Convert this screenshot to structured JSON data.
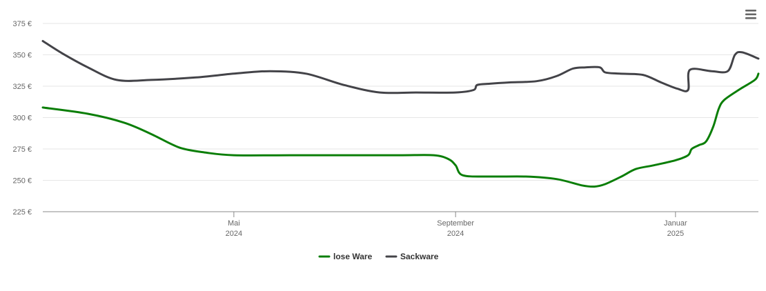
{
  "chart_data": {
    "type": "line",
    "title": "",
    "xlabel": "",
    "ylabel": "",
    "x_range": [
      "2024-01-16",
      "2025-02-16"
    ],
    "ylim": [
      225,
      375
    ],
    "y_ticks": [
      {
        "value": 225,
        "label": "225 €"
      },
      {
        "value": 250,
        "label": "250 €"
      },
      {
        "value": 275,
        "label": "275 €"
      },
      {
        "value": 300,
        "label": "300 €"
      },
      {
        "value": 325,
        "label": "325 €"
      },
      {
        "value": 350,
        "label": "350 €"
      },
      {
        "value": 375,
        "label": "375 €"
      }
    ],
    "x_ticks": [
      {
        "date": "2024-05-01",
        "month": "Mai",
        "year": "2024"
      },
      {
        "date": "2024-09-01",
        "month": "September",
        "year": "2024"
      },
      {
        "date": "2025-01-01",
        "month": "Januar",
        "year": "2025"
      }
    ],
    "grid": true,
    "legend_position": "bottom-center",
    "series": [
      {
        "name": "lose Ware",
        "color": "#0a7e07",
        "points": [
          [
            "2024-01-16",
            308
          ],
          [
            "2024-02-10",
            303
          ],
          [
            "2024-03-01",
            296
          ],
          [
            "2024-03-16",
            287
          ],
          [
            "2024-04-01",
            276
          ],
          [
            "2024-04-16",
            272
          ],
          [
            "2024-05-01",
            270
          ],
          [
            "2024-06-01",
            270
          ],
          [
            "2024-07-01",
            270
          ],
          [
            "2024-08-01",
            270
          ],
          [
            "2024-08-20",
            270
          ],
          [
            "2024-08-28",
            267
          ],
          [
            "2024-09-01",
            262
          ],
          [
            "2024-09-05",
            254
          ],
          [
            "2024-09-20",
            253
          ],
          [
            "2024-10-10",
            253
          ],
          [
            "2024-10-27",
            251
          ],
          [
            "2024-11-10",
            246
          ],
          [
            "2024-11-17",
            245
          ],
          [
            "2024-11-23",
            247
          ],
          [
            "2024-12-02",
            253
          ],
          [
            "2024-12-10",
            259
          ],
          [
            "2024-12-20",
            262
          ],
          [
            "2025-01-01",
            266
          ],
          [
            "2025-01-08",
            270
          ],
          [
            "2025-01-10",
            275
          ],
          [
            "2025-01-14",
            278
          ],
          [
            "2025-01-18",
            281
          ],
          [
            "2025-01-22",
            293
          ],
          [
            "2025-01-25",
            307
          ],
          [
            "2025-01-28",
            314
          ],
          [
            "2025-02-05",
            322
          ],
          [
            "2025-02-14",
            330
          ],
          [
            "2025-02-16",
            335
          ]
        ]
      },
      {
        "name": "Sackware",
        "color": "#434348",
        "points": [
          [
            "2024-01-16",
            361
          ],
          [
            "2024-01-27",
            351
          ],
          [
            "2024-02-10",
            340
          ],
          [
            "2024-02-26",
            330
          ],
          [
            "2024-03-16",
            330
          ],
          [
            "2024-04-10",
            332
          ],
          [
            "2024-05-01",
            335
          ],
          [
            "2024-05-21",
            337
          ],
          [
            "2024-06-10",
            335
          ],
          [
            "2024-07-01",
            326
          ],
          [
            "2024-07-21",
            320
          ],
          [
            "2024-08-10",
            320
          ],
          [
            "2024-09-01",
            320
          ],
          [
            "2024-09-11",
            322
          ],
          [
            "2024-09-13",
            326
          ],
          [
            "2024-09-20",
            327
          ],
          [
            "2024-10-01",
            328
          ],
          [
            "2024-10-16",
            329
          ],
          [
            "2024-10-27",
            333
          ],
          [
            "2024-11-05",
            339
          ],
          [
            "2024-11-12",
            340
          ],
          [
            "2024-11-20",
            340
          ],
          [
            "2024-11-23",
            336
          ],
          [
            "2024-12-01",
            335
          ],
          [
            "2024-12-14",
            334
          ],
          [
            "2024-12-24",
            328
          ],
          [
            "2025-01-02",
            323
          ],
          [
            "2025-01-08",
            322
          ],
          [
            "2025-01-09",
            338
          ],
          [
            "2025-01-21",
            337
          ],
          [
            "2025-01-30",
            337
          ],
          [
            "2025-02-03",
            350
          ],
          [
            "2025-02-07",
            352
          ],
          [
            "2025-02-16",
            347
          ]
        ]
      }
    ]
  },
  "ui": {
    "menu_icon": "hamburger-menu-icon"
  }
}
